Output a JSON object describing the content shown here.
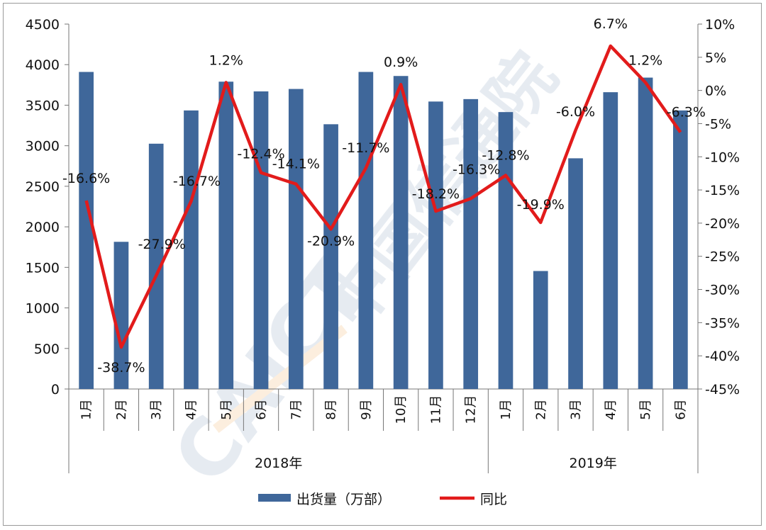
{
  "chart_data": {
    "type": "bar+line",
    "groups": [
      {
        "label": "2018年",
        "months": [
          "1月",
          "2月",
          "3月",
          "4月",
          "5月",
          "6月",
          "7月",
          "8月",
          "9月",
          "10月",
          "11月",
          "12月"
        ]
      },
      {
        "label": "2019年",
        "months": [
          "1月",
          "2月",
          "3月",
          "4月",
          "5月",
          "6月"
        ]
      }
    ],
    "series": [
      {
        "name": "出货量（万部）",
        "type": "bar",
        "axis": "left",
        "color": "#3f679a",
        "values": [
          3910,
          1815,
          3025,
          3435,
          3790,
          3670,
          3700,
          3265,
          3910,
          3860,
          3545,
          3575,
          3415,
          1455,
          2845,
          3660,
          3840,
          3435
        ]
      },
      {
        "name": "同比",
        "type": "line",
        "axis": "right",
        "color": "#e21b1b",
        "values": [
          -16.6,
          -38.7,
          -27.9,
          -16.7,
          1.2,
          -12.4,
          -14.1,
          -20.9,
          -11.7,
          0.9,
          -18.2,
          -16.3,
          -12.8,
          -19.9,
          -6.0,
          6.7,
          1.2,
          -6.3
        ],
        "labels": [
          "-16.6%",
          "-38.7%",
          "-27.9%",
          "-16.7%",
          "1.2%",
          "-12.4%",
          "-14.1%",
          "-20.9%",
          "-11.7%",
          "0.9%",
          "-18.2%",
          "-16.3%",
          "-12.8%",
          "-19.9%",
          "-6.0%",
          "6.7%",
          "1.2%",
          "-6.3%"
        ]
      }
    ],
    "y_left": {
      "min": 0,
      "max": 4500,
      "step": 500,
      "ticks": [
        "0",
        "500",
        "1000",
        "1500",
        "2000",
        "2500",
        "3000",
        "3500",
        "4000",
        "4500"
      ]
    },
    "y_right": {
      "min": -45,
      "max": 10,
      "step": 5,
      "ticks": [
        "-45%",
        "-40%",
        "-35%",
        "-30%",
        "-25%",
        "-20%",
        "-15%",
        "-10%",
        "-5%",
        "0%",
        "5%",
        "10%"
      ]
    },
    "grid": false,
    "legend_position": "bottom",
    "watermark": "CAICT 中国信通院"
  }
}
